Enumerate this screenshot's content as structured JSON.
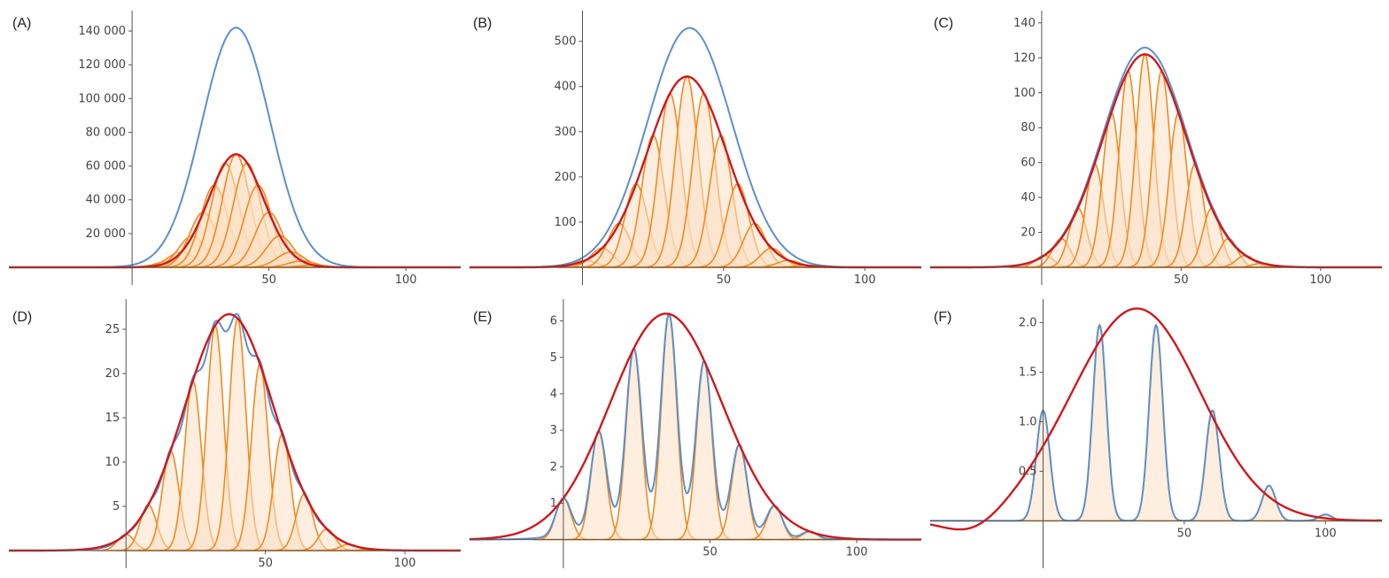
{
  "colors": {
    "envelope": "#cc1a1f",
    "total": "#5f8fc8",
    "gaussian": "#f28a1d",
    "fill": "#fbe0c4",
    "axis": "#555555"
  },
  "chart_data": [
    {
      "label": "(A)",
      "type": "line",
      "xlim": [
        -45,
        120
      ],
      "ylim": [
        0,
        150000
      ],
      "x_ticks": [
        {
          "v": 50,
          "t": "50"
        },
        {
          "v": 100,
          "t": "100"
        }
      ],
      "y_ticks": [
        {
          "v": 20000,
          "t": "20 000"
        },
        {
          "v": 40000,
          "t": "40 000"
        },
        {
          "v": 60000,
          "t": "60 000"
        },
        {
          "v": 80000,
          "t": "80 000"
        },
        {
          "v": 100000,
          "t": "100 000"
        },
        {
          "v": 120000,
          "t": "120 000"
        },
        {
          "v": 140000,
          "t": "140 000"
        }
      ],
      "envelope": {
        "amplitude": 67000,
        "center": 38,
        "sigma": 10
      },
      "total_curve": {
        "amplitude": 142000,
        "center": 38,
        "sigma": 12.5
      },
      "gaussians": {
        "spacing": 4,
        "sigma": 5,
        "from": 10,
        "to": 66
      }
    },
    {
      "label": "(B)",
      "type": "line",
      "xlim": [
        -40,
        120
      ],
      "ylim": [
        0,
        560
      ],
      "x_ticks": [
        {
          "v": 50,
          "t": "50"
        },
        {
          "v": 100,
          "t": "100"
        }
      ],
      "y_ticks": [
        {
          "v": 100,
          "t": "100"
        },
        {
          "v": 200,
          "t": "200"
        },
        {
          "v": 300,
          "t": "300"
        },
        {
          "v": 400,
          "t": "400"
        },
        {
          "v": 500,
          "t": "500"
        }
      ],
      "envelope": {
        "amplitude": 422,
        "center": 37,
        "sigma": 14
      },
      "total_curve": {
        "amplitude": 525,
        "center": 38,
        "sigma": 15,
        "ripple": 0.03
      },
      "gaussians": {
        "spacing": 6,
        "sigma": 4,
        "from": 1,
        "to": 85
      }
    },
    {
      "label": "(C)",
      "type": "line",
      "xlim": [
        -40,
        122
      ],
      "ylim": [
        0,
        145
      ],
      "x_ticks": [
        {
          "v": 50,
          "t": "50"
        },
        {
          "v": 100,
          "t": "100"
        }
      ],
      "y_ticks": [
        {
          "v": 20,
          "t": "20"
        },
        {
          "v": 40,
          "t": "40"
        },
        {
          "v": 60,
          "t": "60"
        },
        {
          "v": 80,
          "t": "80"
        },
        {
          "v": 100,
          "t": "100"
        },
        {
          "v": 120,
          "t": "120"
        },
        {
          "v": 140,
          "t": "140"
        }
      ],
      "envelope": {
        "amplitude": 122,
        "center": 37,
        "sigma": 15
      },
      "total_curve": {
        "amplitude": 122,
        "center": 37,
        "sigma": 15,
        "ripple": 0.1
      },
      "gaussians": {
        "spacing": 6,
        "sigma": 3.2,
        "from": 1,
        "to": 85
      }
    },
    {
      "label": "(D)",
      "type": "line",
      "xlim": [
        -42,
        120
      ],
      "ylim": [
        0,
        28
      ],
      "x_ticks": [
        {
          "v": 50,
          "t": "50"
        },
        {
          "v": 100,
          "t": "100"
        }
      ],
      "y_ticks": [
        {
          "v": 5,
          "t": "5"
        },
        {
          "v": 10,
          "t": "10"
        },
        {
          "v": 15,
          "t": "15"
        },
        {
          "v": 20,
          "t": "20"
        },
        {
          "v": 25,
          "t": "25"
        }
      ],
      "envelope": {
        "amplitude": 26.7,
        "center": 37,
        "sigma": 16
      },
      "total_curve": {
        "amplitude": 26.7,
        "center": 37,
        "sigma": 16,
        "ripple": 0.35
      },
      "gaussians": {
        "spacing": 8,
        "sigma": 3,
        "from": 0,
        "to": 96
      }
    },
    {
      "label": "(E)",
      "type": "line",
      "xlim": [
        -32,
        122
      ],
      "ylim": [
        -0.3,
        6.5
      ],
      "x_ticks": [
        {
          "v": 50,
          "t": "50"
        },
        {
          "v": 100,
          "t": "100"
        }
      ],
      "y_ticks": [
        {
          "v": 1,
          "t": "1"
        },
        {
          "v": 2,
          "t": "2"
        },
        {
          "v": 3,
          "t": "3"
        },
        {
          "v": 4,
          "t": "4"
        },
        {
          "v": 5,
          "t": "5"
        },
        {
          "v": 6,
          "t": "6"
        }
      ],
      "envelope": {
        "amplitude": 6.2,
        "center": 35,
        "sigma": 19
      },
      "total_curve": {
        "amplitude": 6.2,
        "center": 35,
        "sigma": 19,
        "ripple": 0.9
      },
      "gaussians": {
        "spacing": 12,
        "sigma": 2.6,
        "from": 0,
        "to": 120
      }
    },
    {
      "label": "(F)",
      "type": "line",
      "xlim": [
        -40,
        120
      ],
      "ylim": [
        -0.3,
        2.2
      ],
      "x_ticks": [
        {
          "v": 50,
          "t": "50"
        },
        {
          "v": 100,
          "t": "100"
        }
      ],
      "y_ticks": [
        {
          "v": 0.5,
          "t": "0.5"
        },
        {
          "v": 1.0,
          "t": "1.0"
        },
        {
          "v": 1.5,
          "t": "1.5"
        },
        {
          "v": 2.0,
          "t": "2.0"
        }
      ],
      "envelope": {
        "amplitude": 2.12,
        "center": 30,
        "sigma": 23,
        "skew": 1
      },
      "total_curve": {
        "amplitude": 2.12,
        "center": 30,
        "sigma": 23,
        "ripple": 1
      },
      "gaussians": {
        "spacing": 20,
        "sigma": 2.4,
        "from": 0,
        "to": 120
      }
    }
  ]
}
